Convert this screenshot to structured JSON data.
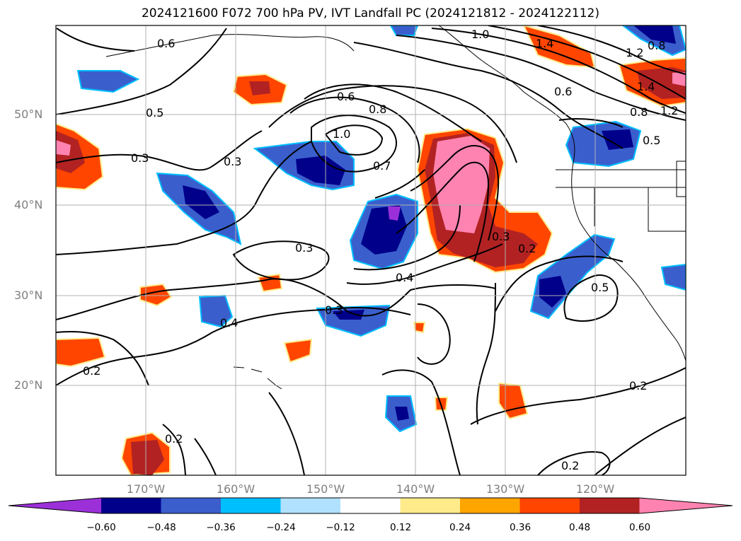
{
  "title": "2024121600 F072 700 hPa PV, IVT Landfall PC (2024121812 - 2024122112)",
  "latitude_labels": [
    "50°N",
    "40°N",
    "30°N",
    "20°N"
  ],
  "longitude_labels": [
    "170°W",
    "160°W",
    "150°W",
    "140°W",
    "130°W",
    "120°W"
  ],
  "colorbar": {
    "ticks": [
      "−0.60",
      "−0.48",
      "−0.36",
      "−0.24",
      "−0.12",
      "0.12",
      "0.24",
      "0.36",
      "0.48",
      "0.60"
    ],
    "colors": [
      "#9b30d9",
      "#00008b",
      "#3a5fcd",
      "#00bfff",
      "#b0e2ff",
      "#ffffff",
      "#ffeb8a",
      "#ffa500",
      "#ff4500",
      "#b22222",
      "#ff83b0"
    ]
  },
  "contour_labels": [
    "0.6",
    "1.0",
    "1.4",
    "1.2",
    "0.8",
    "0.6",
    "0.8",
    "0.5",
    "0.6",
    "0.8",
    "1.0",
    "0.5",
    "1.4",
    "1.2",
    "0.3",
    "0.3",
    "0.7",
    "0.3",
    "0.2",
    "0.3",
    "0.4",
    "0.4",
    "0.3",
    "0.5",
    "0.2",
    "0.2",
    "0.2",
    "0.2"
  ]
}
